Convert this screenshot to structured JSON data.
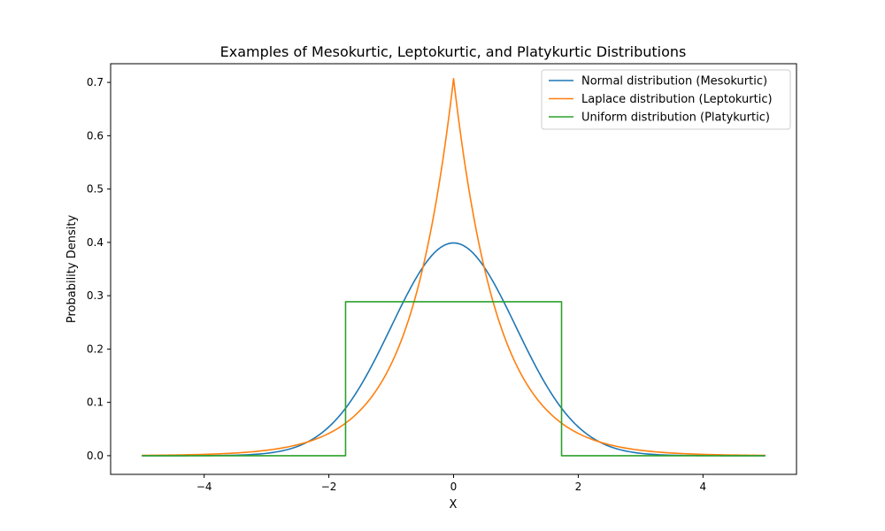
{
  "chart_data": {
    "type": "line",
    "title": "Examples of Mesokurtic, Leptokurtic, and Platykurtic Distributions",
    "xlabel": "X",
    "ylabel": "Probability Density",
    "xlim": [
      -5.5,
      5.5
    ],
    "ylim": [
      -0.035,
      0.735
    ],
    "xticks": [
      -4,
      -2,
      0,
      2,
      4
    ],
    "xtick_labels": [
      "−4",
      "−2",
      "0",
      "2",
      "4"
    ],
    "yticks": [
      0.0,
      0.1,
      0.2,
      0.3,
      0.4,
      0.5,
      0.6,
      0.7
    ],
    "ytick_labels": [
      "0.0",
      "0.1",
      "0.2",
      "0.3",
      "0.4",
      "0.5",
      "0.6",
      "0.7"
    ],
    "grid": false,
    "legend_position": "top-right",
    "series": [
      {
        "name": "Normal distribution (Mesokurtic)",
        "color": "#1f77b4",
        "x": [
          -5,
          -4.5,
          -4,
          -3.5,
          -3,
          -2.5,
          -2,
          -1.75,
          -1.5,
          -1.25,
          -1,
          -0.75,
          -0.5,
          -0.25,
          0,
          0.25,
          0.5,
          0.75,
          1,
          1.25,
          1.5,
          1.75,
          2,
          2.5,
          3,
          3.5,
          4,
          4.5,
          5
        ],
        "y": [
          0.0,
          0.0,
          0.0001,
          0.0009,
          0.0044,
          0.0175,
          0.054,
          0.0863,
          0.1295,
          0.1826,
          0.242,
          0.3011,
          0.3521,
          0.3867,
          0.3989,
          0.3867,
          0.3521,
          0.3011,
          0.242,
          0.1826,
          0.1295,
          0.0863,
          0.054,
          0.0175,
          0.0044,
          0.0009,
          0.0001,
          0.0,
          0.0
        ]
      },
      {
        "name": "Laplace distribution (Leptokurtic)",
        "color": "#ff7f0e",
        "x": [
          -5,
          -4.5,
          -4,
          -3.5,
          -3,
          -2.5,
          -2,
          -1.75,
          -1.5,
          -1.25,
          -1,
          -0.75,
          -0.5,
          -0.25,
          0,
          0.25,
          0.5,
          0.75,
          1,
          1.25,
          1.5,
          1.75,
          2,
          2.5,
          3,
          3.5,
          4,
          4.5,
          5
        ],
        "y": [
          0.0006,
          0.0012,
          0.0024,
          0.0049,
          0.01,
          0.0205,
          0.0419,
          0.0598,
          0.0846,
          0.1208,
          0.1713,
          0.2436,
          0.3466,
          0.4933,
          0.7071,
          0.4933,
          0.3466,
          0.2436,
          0.1713,
          0.1208,
          0.0846,
          0.0598,
          0.0419,
          0.0205,
          0.01,
          0.0049,
          0.0024,
          0.0012,
          0.0006
        ]
      },
      {
        "name": "Uniform distribution (Platykurtic)",
        "color": "#2ca02c",
        "x": [
          -5,
          -1.732,
          -1.732,
          1.732,
          1.732,
          5
        ],
        "y": [
          0,
          0,
          0.2887,
          0.2887,
          0,
          0
        ]
      }
    ]
  }
}
